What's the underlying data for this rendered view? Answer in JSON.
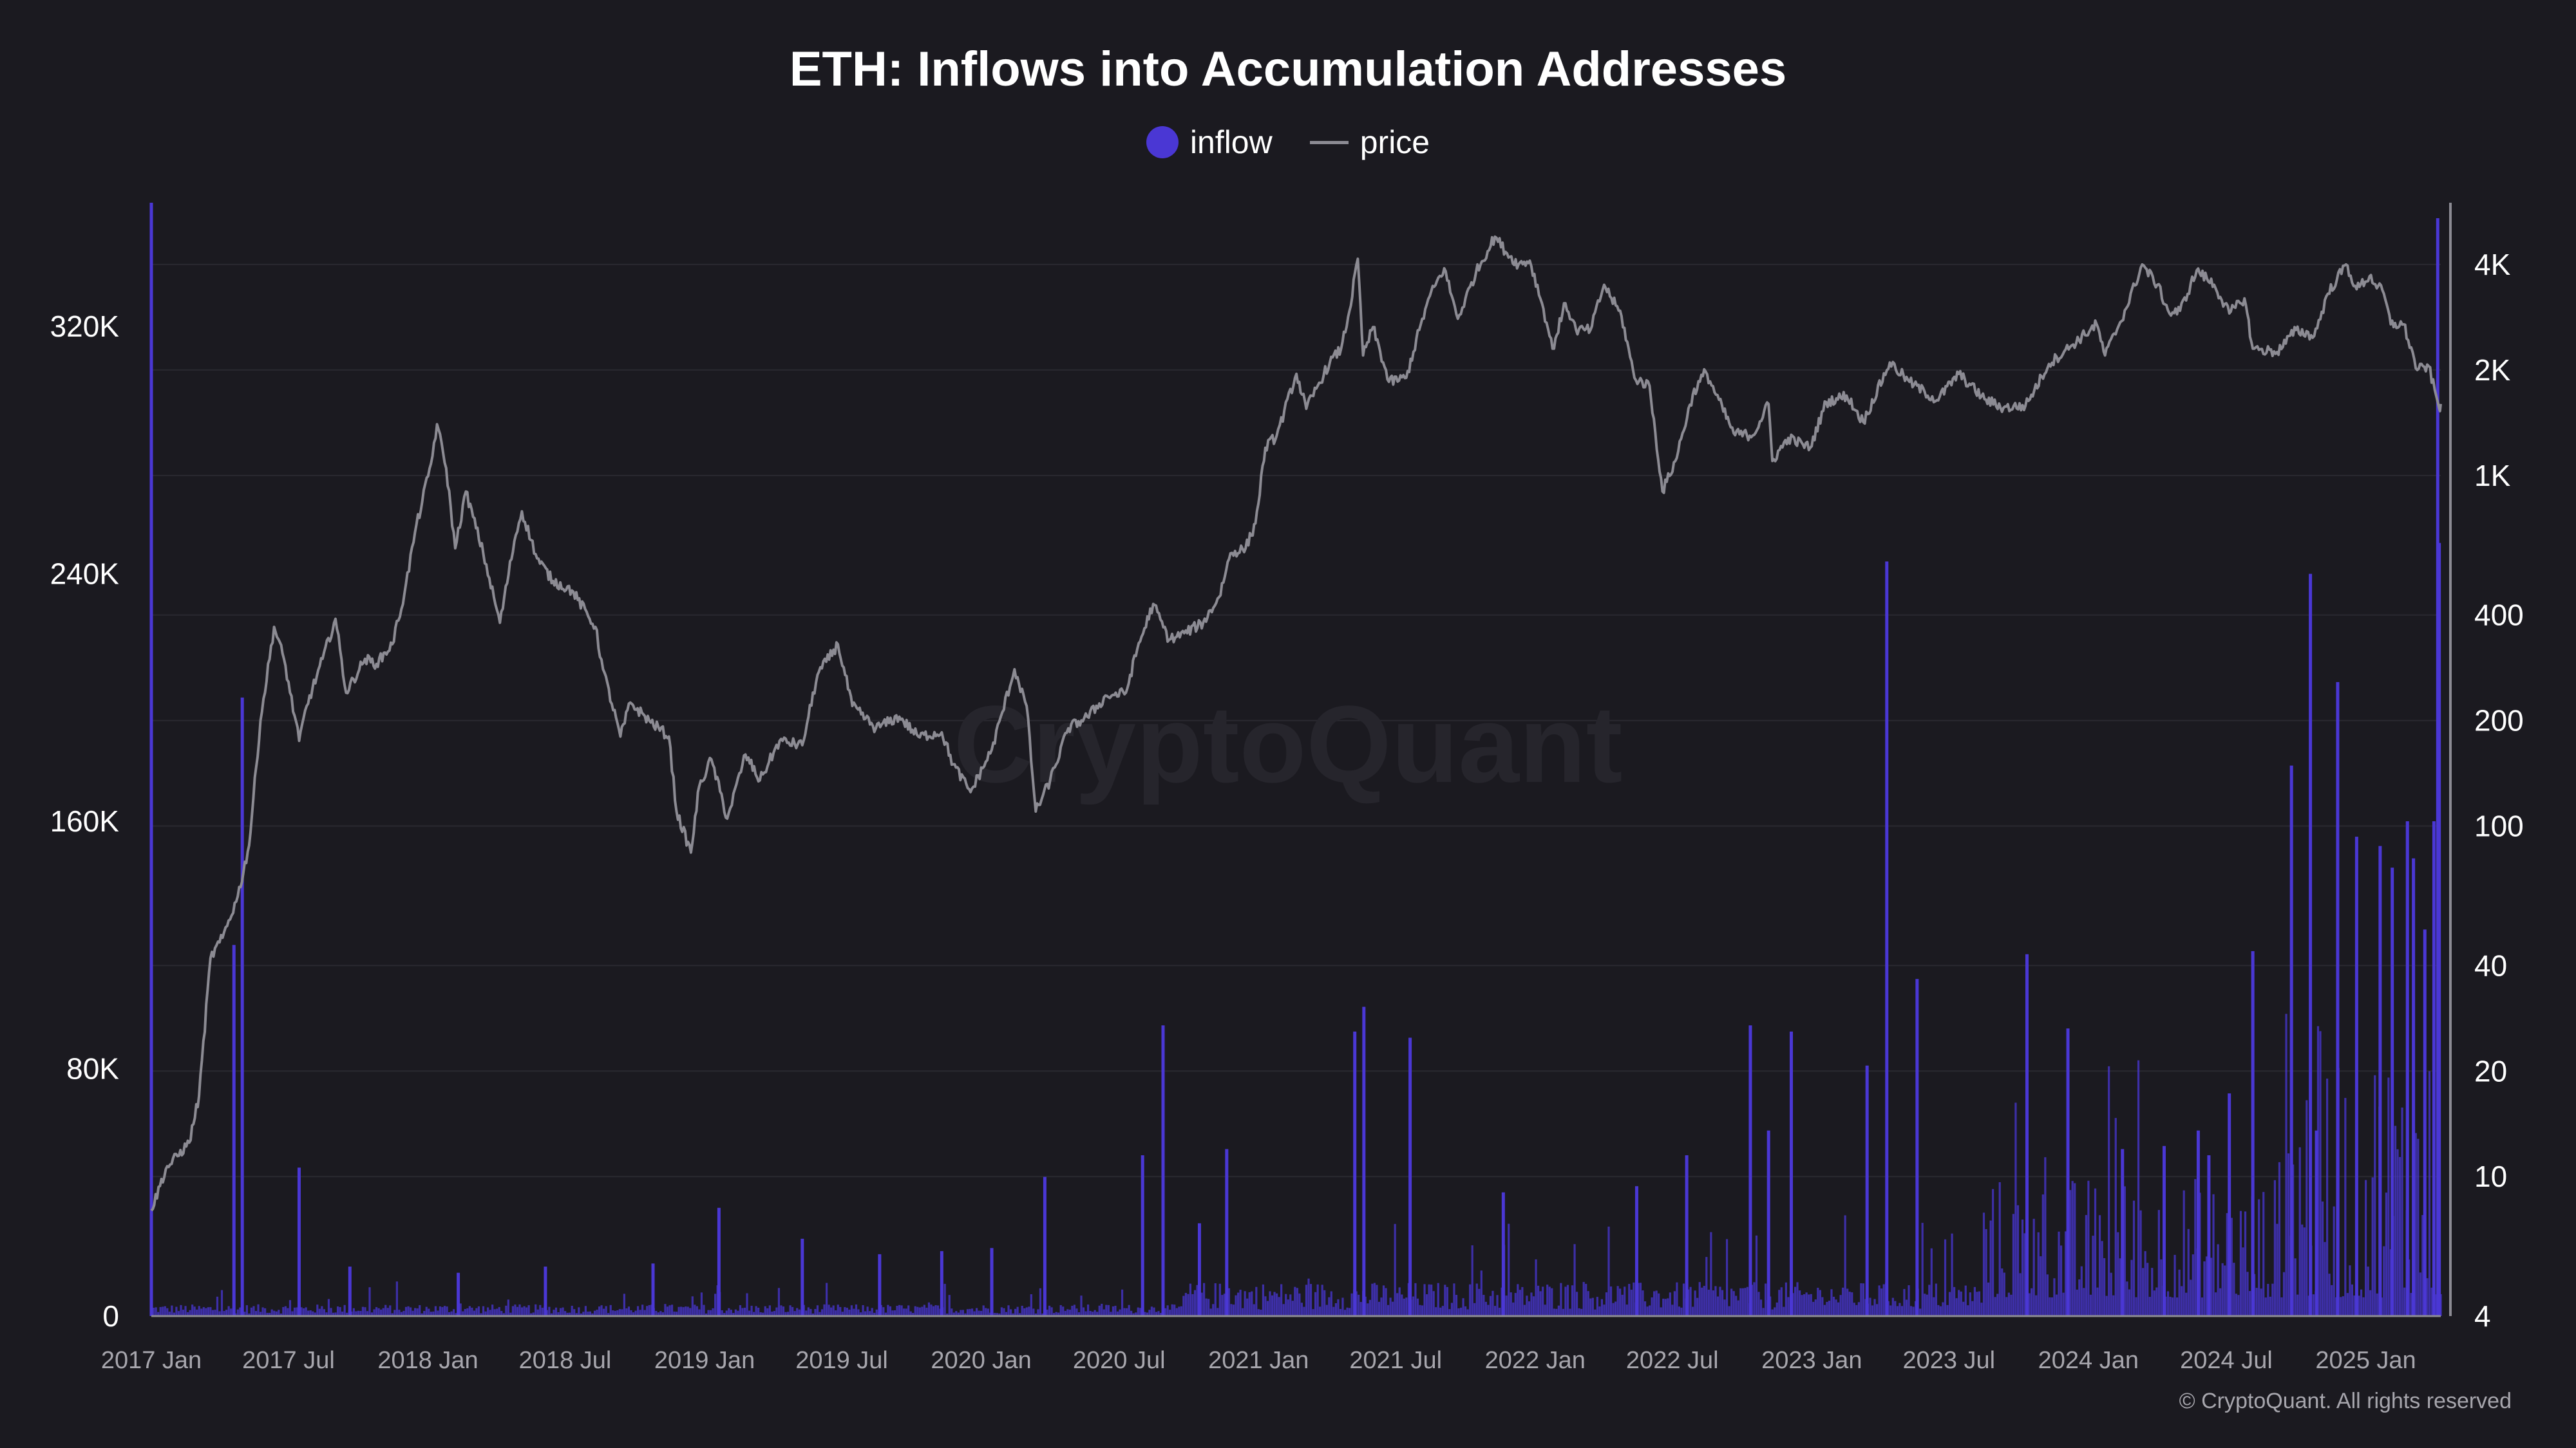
{
  "chart": {
    "title": "ETH: Inflows into Accumulation Addresses",
    "watermark": "CryptoQuant",
    "copyright": "© CryptoQuant. All rights reserved"
  },
  "legend": [
    {
      "label": "inflow",
      "symbol": "dot",
      "color": "#4a37d4"
    },
    {
      "label": "price",
      "symbol": "line",
      "color": "#8c8b93"
    }
  ],
  "colors": {
    "background": "#1b1a20",
    "inflow": "#4a37d4",
    "price": "#8c8b93",
    "grid": "#2a2930",
    "axis": "#8c8b93"
  },
  "chart_data": {
    "type": "bar+line",
    "title": "ETH: Inflows into Accumulation Addresses",
    "x_ticks": [
      "2017 Jan",
      "2017 Jul",
      "2018 Jan",
      "2018 Jul",
      "2019 Jan",
      "2019 Jul",
      "2020 Jan",
      "2020 Jul",
      "2021 Jan",
      "2021 Jul",
      "2022 Jan",
      "2022 Jul",
      "2023 Jan",
      "2023 Jul",
      "2024 Jan",
      "2024 Jul",
      "2025 Jan"
    ],
    "x_range": [
      "2017-01-01",
      "2025-04-10"
    ],
    "left_axis": {
      "ticks": [
        "0",
        "80K",
        "160K",
        "240K",
        "320K"
      ],
      "tick_values": [
        0,
        80000,
        160000,
        240000,
        320000
      ],
      "range": [
        0,
        360000
      ]
    },
    "right_axis": {
      "scale": "log",
      "ticks": [
        "4",
        "10",
        "20",
        "40",
        "100",
        "200",
        "400",
        "1K",
        "2K",
        "4K"
      ],
      "tick_values": [
        4,
        10,
        20,
        40,
        100,
        200,
        400,
        1000,
        2000,
        4000
      ],
      "range": [
        4,
        6000
      ]
    },
    "series": [
      {
        "name": "price",
        "type": "line",
        "axis": "right",
        "points": [
          [
            "2017-01-01",
            8.0
          ],
          [
            "2017-01-20",
            10.5
          ],
          [
            "2017-02-20",
            12.5
          ],
          [
            "2017-03-05",
            17
          ],
          [
            "2017-03-20",
            42
          ],
          [
            "2017-04-05",
            48
          ],
          [
            "2017-04-25",
            63
          ],
          [
            "2017-05-10",
            88
          ],
          [
            "2017-05-25",
            200
          ],
          [
            "2017-06-12",
            370
          ],
          [
            "2017-06-25",
            300
          ],
          [
            "2017-07-15",
            175
          ],
          [
            "2017-07-25",
            220
          ],
          [
            "2017-08-15",
            300
          ],
          [
            "2017-09-01",
            390
          ],
          [
            "2017-09-15",
            240
          ],
          [
            "2017-10-10",
            300
          ],
          [
            "2017-10-25",
            290
          ],
          [
            "2017-11-15",
            330
          ],
          [
            "2017-12-01",
            460
          ],
          [
            "2017-12-15",
            690
          ],
          [
            "2018-01-05",
            1080
          ],
          [
            "2018-01-13",
            1400
          ],
          [
            "2018-01-25",
            1050
          ],
          [
            "2018-02-06",
            620
          ],
          [
            "2018-02-20",
            900
          ],
          [
            "2018-03-15",
            600
          ],
          [
            "2018-04-06",
            380
          ],
          [
            "2018-04-25",
            650
          ],
          [
            "2018-05-05",
            790
          ],
          [
            "2018-05-25",
            580
          ],
          [
            "2018-06-15",
            500
          ],
          [
            "2018-07-10",
            470
          ],
          [
            "2018-08-10",
            370
          ],
          [
            "2018-08-20",
            280
          ],
          [
            "2018-09-12",
            180
          ],
          [
            "2018-09-25",
            225
          ],
          [
            "2018-10-20",
            200
          ],
          [
            "2018-11-15",
            180
          ],
          [
            "2018-11-25",
            110
          ],
          [
            "2018-12-14",
            84
          ],
          [
            "2018-12-25",
            130
          ],
          [
            "2019-01-10",
            155
          ],
          [
            "2019-01-31",
            105
          ],
          [
            "2019-02-24",
            160
          ],
          [
            "2019-03-15",
            135
          ],
          [
            "2019-04-10",
            175
          ],
          [
            "2019-05-10",
            170
          ],
          [
            "2019-05-30",
            270
          ],
          [
            "2019-06-26",
            330
          ],
          [
            "2019-07-15",
            220
          ],
          [
            "2019-08-15",
            190
          ],
          [
            "2019-09-15",
            205
          ],
          [
            "2019-10-10",
            180
          ],
          [
            "2019-11-10",
            185
          ],
          [
            "2019-11-25",
            150
          ],
          [
            "2019-12-18",
            125
          ],
          [
            "2020-01-15",
            165
          ],
          [
            "2020-02-14",
            280
          ],
          [
            "2020-03-01",
            220
          ],
          [
            "2020-03-13",
            110
          ],
          [
            "2020-04-01",
            135
          ],
          [
            "2020-04-25",
            190
          ],
          [
            "2020-05-20",
            205
          ],
          [
            "2020-06-15",
            235
          ],
          [
            "2020-07-10",
            240
          ],
          [
            "2020-07-25",
            320
          ],
          [
            "2020-08-15",
            430
          ],
          [
            "2020-09-05",
            340
          ],
          [
            "2020-09-25",
            355
          ],
          [
            "2020-10-20",
            380
          ],
          [
            "2020-11-10",
            450
          ],
          [
            "2020-11-25",
            600
          ],
          [
            "2020-12-15",
            620
          ],
          [
            "2020-12-28",
            730
          ],
          [
            "2021-01-10",
            1200
          ],
          [
            "2021-01-25",
            1300
          ],
          [
            "2021-02-20",
            1950
          ],
          [
            "2021-03-05",
            1550
          ],
          [
            "2021-03-20",
            1800
          ],
          [
            "2021-04-05",
            2100
          ],
          [
            "2021-04-20",
            2300
          ],
          [
            "2021-05-01",
            2950
          ],
          [
            "2021-05-12",
            4150
          ],
          [
            "2021-05-19",
            2200
          ],
          [
            "2021-06-01",
            2650
          ],
          [
            "2021-06-22",
            1850
          ],
          [
            "2021-07-15",
            1900
          ],
          [
            "2021-08-01",
            2600
          ],
          [
            "2021-08-15",
            3250
          ],
          [
            "2021-09-03",
            3900
          ],
          [
            "2021-09-21",
            2800
          ],
          [
            "2021-10-15",
            3800
          ],
          [
            "2021-11-09",
            4800
          ],
          [
            "2021-11-25",
            4300
          ],
          [
            "2021-12-10",
            4000
          ],
          [
            "2021-12-25",
            4100
          ],
          [
            "2022-01-10",
            3100
          ],
          [
            "2022-01-24",
            2300
          ],
          [
            "2022-02-10",
            3100
          ],
          [
            "2022-02-24",
            2600
          ],
          [
            "2022-03-15",
            2600
          ],
          [
            "2022-04-02",
            3500
          ],
          [
            "2022-04-25",
            2850
          ],
          [
            "2022-05-12",
            1900
          ],
          [
            "2022-06-01",
            1800
          ],
          [
            "2022-06-18",
            900
          ],
          [
            "2022-07-05",
            1100
          ],
          [
            "2022-07-28",
            1700
          ],
          [
            "2022-08-14",
            1980
          ],
          [
            "2022-09-20",
            1320
          ],
          [
            "2022-10-15",
            1300
          ],
          [
            "2022-11-05",
            1600
          ],
          [
            "2022-11-10",
            1100
          ],
          [
            "2022-12-01",
            1280
          ],
          [
            "2022-12-30",
            1200
          ],
          [
            "2023-01-20",
            1620
          ],
          [
            "2023-02-16",
            1690
          ],
          [
            "2023-03-10",
            1420
          ],
          [
            "2023-04-14",
            2100
          ],
          [
            "2023-05-10",
            1850
          ],
          [
            "2023-06-15",
            1640
          ],
          [
            "2023-07-14",
            1950
          ],
          [
            "2023-08-17",
            1650
          ],
          [
            "2023-09-11",
            1560
          ],
          [
            "2023-10-10",
            1580
          ],
          [
            "2023-11-10",
            2080
          ],
          [
            "2023-12-10",
            2350
          ],
          [
            "2024-01-12",
            2700
          ],
          [
            "2024-01-23",
            2200
          ],
          [
            "2024-02-20",
            3000
          ],
          [
            "2024-03-12",
            4000
          ],
          [
            "2024-04-01",
            3500
          ],
          [
            "2024-04-17",
            2900
          ],
          [
            "2024-05-01",
            2950
          ],
          [
            "2024-05-23",
            3850
          ],
          [
            "2024-06-15",
            3500
          ],
          [
            "2024-07-05",
            2900
          ],
          [
            "2024-07-25",
            3200
          ],
          [
            "2024-08-05",
            2300
          ],
          [
            "2024-09-06",
            2250
          ],
          [
            "2024-10-01",
            2600
          ],
          [
            "2024-10-25",
            2500
          ],
          [
            "2024-11-12",
            3300
          ],
          [
            "2024-12-06",
            4000
          ],
          [
            "2024-12-20",
            3400
          ],
          [
            "2025-01-06",
            3700
          ],
          [
            "2025-01-25",
            3300
          ],
          [
            "2025-02-03",
            2700
          ],
          [
            "2025-02-20",
            2700
          ],
          [
            "2025-03-10",
            2000
          ],
          [
            "2025-03-25",
            2050
          ],
          [
            "2025-04-08",
            1550
          ],
          [
            "2025-04-10",
            1600
          ]
        ]
      },
      {
        "name": "inflow",
        "type": "bar",
        "axis": "left",
        "notable_points": [
          [
            "2017-01-01",
            360000
          ],
          [
            "2017-04-20",
            120000
          ],
          [
            "2017-05-01",
            200000
          ],
          [
            "2017-07-15",
            48000
          ],
          [
            "2017-09-20",
            16000
          ],
          [
            "2018-02-10",
            14000
          ],
          [
            "2018-06-05",
            16000
          ],
          [
            "2018-10-25",
            17000
          ],
          [
            "2019-01-20",
            35000
          ],
          [
            "2019-05-10",
            25000
          ],
          [
            "2019-08-20",
            20000
          ],
          [
            "2019-11-10",
            21000
          ],
          [
            "2020-01-15",
            22000
          ],
          [
            "2020-03-25",
            45000
          ],
          [
            "2020-08-01",
            52000
          ],
          [
            "2020-08-28",
            94000
          ],
          [
            "2020-10-15",
            30000
          ],
          [
            "2020-11-20",
            54000
          ],
          [
            "2021-05-08",
            92000
          ],
          [
            "2021-05-20",
            100000
          ],
          [
            "2021-07-20",
            90000
          ],
          [
            "2021-11-20",
            40000
          ],
          [
            "2022-05-15",
            42000
          ],
          [
            "2022-07-20",
            52000
          ],
          [
            "2022-10-12",
            94000
          ],
          [
            "2022-11-05",
            60000
          ],
          [
            "2022-12-05",
            92000
          ],
          [
            "2023-03-15",
            81000
          ],
          [
            "2023-04-10",
            244000
          ],
          [
            "2023-05-20",
            109000
          ],
          [
            "2023-10-12",
            117000
          ],
          [
            "2023-12-05",
            93000
          ],
          [
            "2024-02-15",
            54000
          ],
          [
            "2024-04-10",
            55000
          ],
          [
            "2024-05-25",
            60000
          ],
          [
            "2024-06-08",
            52000
          ],
          [
            "2024-07-05",
            72000
          ],
          [
            "2024-08-05",
            118000
          ],
          [
            "2024-09-25",
            178000
          ],
          [
            "2024-10-20",
            240000
          ],
          [
            "2024-10-28",
            60000
          ],
          [
            "2024-11-25",
            205000
          ],
          [
            "2024-12-20",
            155000
          ],
          [
            "2025-01-20",
            152000
          ],
          [
            "2025-02-05",
            145000
          ],
          [
            "2025-02-25",
            160000
          ],
          [
            "2025-03-05",
            148000
          ],
          [
            "2025-03-20",
            125000
          ],
          [
            "2025-04-01",
            160000
          ],
          [
            "2025-04-06",
            355000
          ],
          [
            "2025-04-08",
            250000
          ]
        ]
      }
    ],
    "grid": true,
    "legend_position": "top-center"
  }
}
